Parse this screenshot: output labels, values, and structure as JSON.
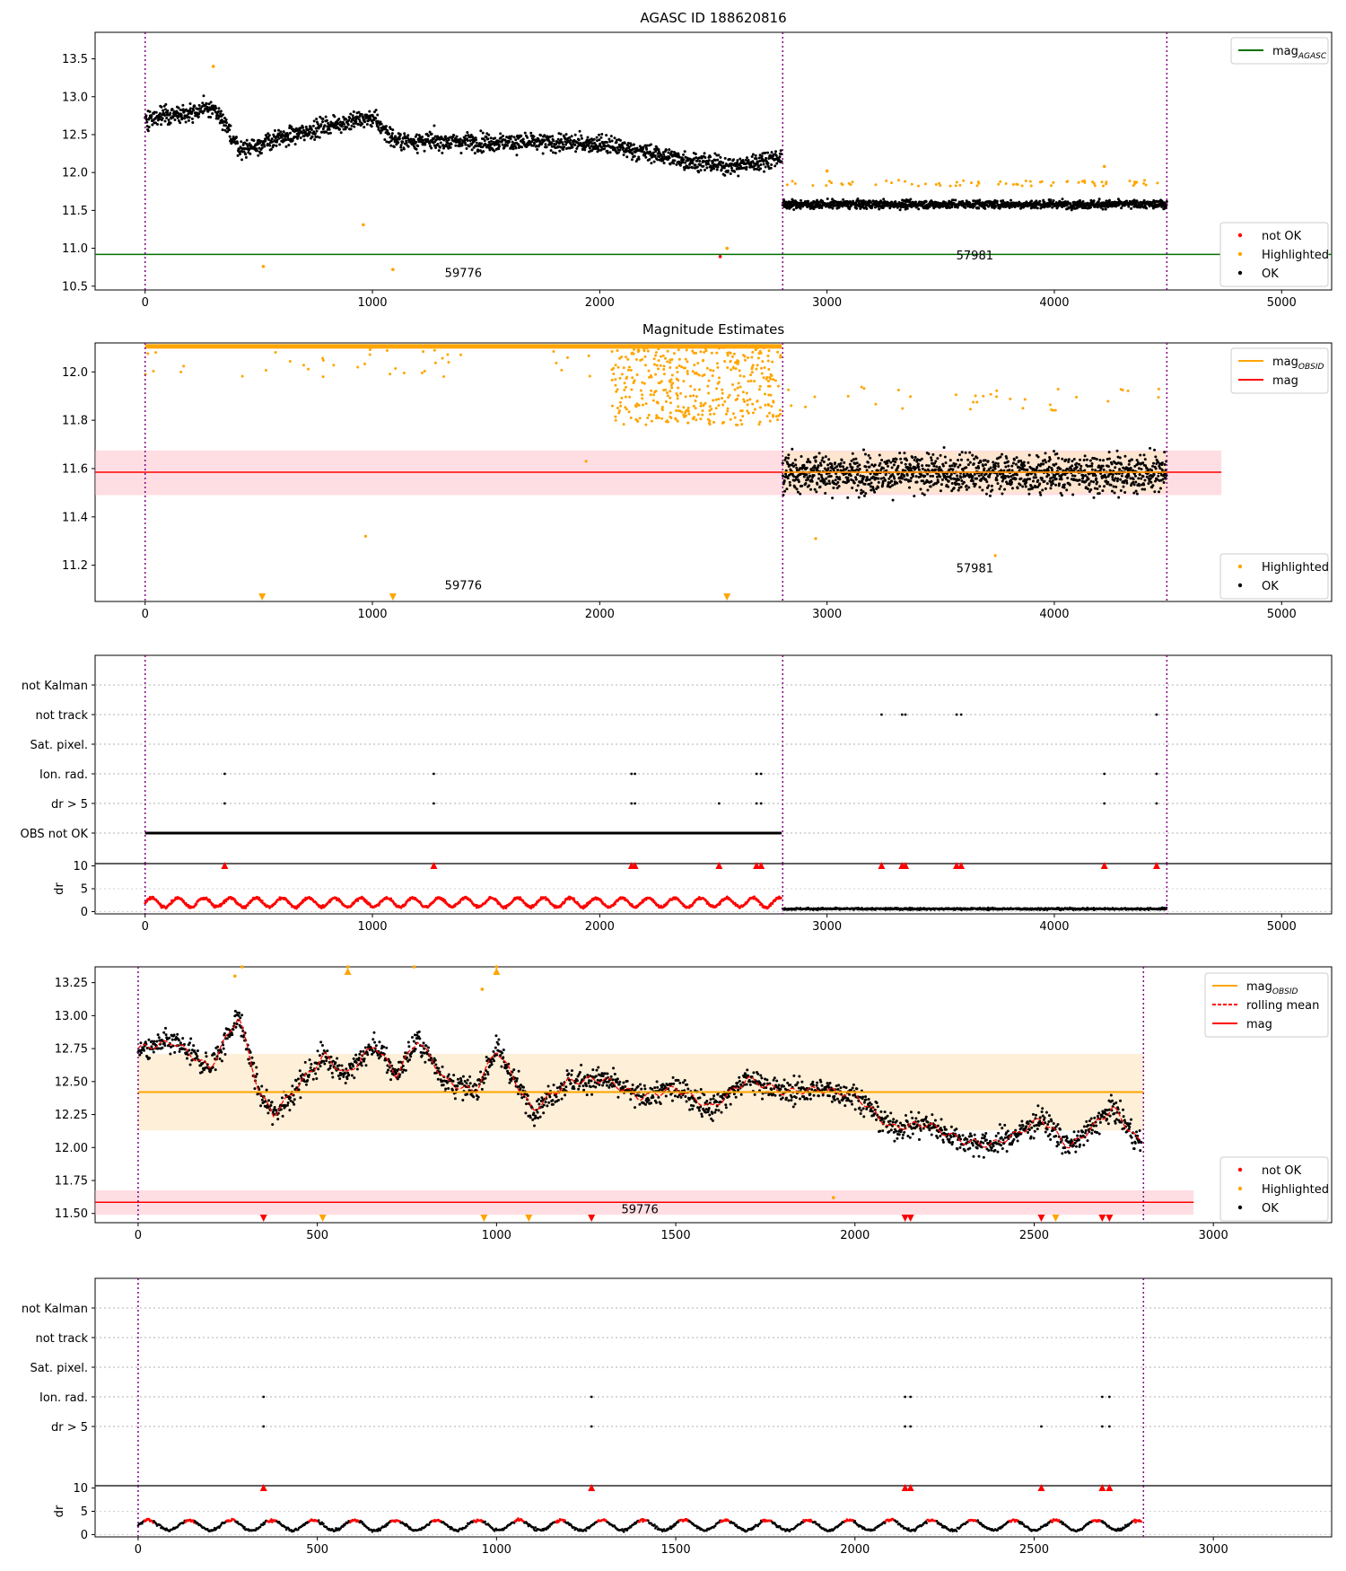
{
  "figure_title": "AGASC ID 188620816",
  "colors": {
    "ok": "#000000",
    "highlighted": "#ffa500",
    "not_ok": "#ff0000",
    "agasc": "#007000",
    "mag": "#ff0000",
    "obsid_mag": "#ffa500",
    "obs_boundary": "#800080",
    "mag_band": "#ffb6c1",
    "obsid_band": "#fde8c8"
  },
  "chart_data": [
    {
      "id": "p1",
      "type": "scatter",
      "title": "AGASC ID 188620816",
      "xlim": [
        -220,
        5220
      ],
      "ylim": [
        10.45,
        13.85
      ],
      "xticks": [
        "0",
        "1000",
        "2000",
        "3000",
        "4000",
        "5000"
      ],
      "yticks": [
        "10.5",
        "11.0",
        "11.5",
        "12.0",
        "12.5",
        "13.0",
        "13.5"
      ],
      "obs_boundaries": [
        0,
        2805,
        4495
      ],
      "obs_labels": [
        {
          "x": 1400,
          "y": 10.62,
          "text": "59776"
        },
        {
          "x": 3650,
          "y": 10.85,
          "text": "57981"
        }
      ],
      "hlines": [
        {
          "y": 10.92,
          "name": "mag_AGASC",
          "color": "#007000"
        }
      ],
      "series": [
        {
          "name": "OK",
          "obs1_trend": [
            [
              0,
              12.7
            ],
            [
              300,
              12.85
            ],
            [
              420,
              12.3
            ],
            [
              800,
              12.62
            ],
            [
              1000,
              12.72
            ],
            [
              1100,
              12.42
            ],
            [
              2000,
              12.38
            ],
            [
              2400,
              12.15
            ],
            [
              2600,
              12.08
            ],
            [
              2780,
              12.2
            ]
          ],
          "obs1_sigma": 0.15,
          "obs2_mean": 11.58,
          "obs2_sigma": 0.07
        },
        {
          "name": "Highlighted",
          "points": [
            [
              300,
              13.4
            ],
            [
              520,
              10.76
            ],
            [
              960,
              11.31
            ],
            [
              1090,
              10.72
            ],
            [
              2560,
              11.0
            ],
            [
              3000,
              12.02
            ],
            [
              4220,
              12.08
            ]
          ]
        },
        {
          "name": "not OK",
          "points": [
            [
              2530,
              10.89
            ]
          ]
        }
      ],
      "legend_top": [
        "mag_AGASC"
      ],
      "legend_bottom": [
        "not OK",
        "Highlighted",
        "OK"
      ]
    },
    {
      "id": "p2",
      "type": "scatter",
      "title": "Magnitude Estimates",
      "xlim": [
        -220,
        5220
      ],
      "ylim": [
        11.05,
        12.12
      ],
      "xticks": [
        "0",
        "1000",
        "2000",
        "3000",
        "4000",
        "5000"
      ],
      "yticks": [
        "11.2",
        "11.4",
        "11.6",
        "11.8",
        "12.0"
      ],
      "obs_boundaries": [
        0,
        2805,
        4495
      ],
      "obs_labels": [
        {
          "x": 1400,
          "y": 11.1,
          "text": "59776"
        },
        {
          "x": 3650,
          "y": 11.17,
          "text": "57981"
        }
      ],
      "mag": 11.585,
      "mag_band": [
        11.49,
        11.675
      ],
      "obsid_mag_obs2": 11.585,
      "obsid_band_obs2": [
        11.5,
        11.67
      ],
      "series": [
        {
          "name": "Highlighted",
          "description": "obs 1 saturated at top (~12.1), scattered 11.7-12.1 near x 2100-2800"
        },
        {
          "name": "OK",
          "obs2_mean": 11.58,
          "obs2_sigma": 0.09
        }
      ],
      "legend_top": [
        "mag_OBSID",
        "mag"
      ],
      "legend_bottom": [
        "Highlighted",
        "OK"
      ]
    },
    {
      "id": "p3",
      "type": "scatter",
      "title": "",
      "xlim": [
        -220,
        5220
      ],
      "categories": [
        "not Kalman",
        "not track",
        "Sat. pixel.",
        "Ion. rad.",
        "dr > 5",
        "OBS not OK"
      ],
      "flag_x": {
        "not track": [
          3240,
          3330,
          3345,
          3570,
          3590,
          4450
        ],
        "Ion. rad.": [
          350,
          1270,
          2140,
          2155,
          2690,
          2710,
          4220,
          4450
        ],
        "dr > 5": [
          350,
          1270,
          2140,
          2155,
          2525,
          2690,
          2710,
          4220,
          4450
        ],
        "OBS not OK": [
          0,
          2800
        ]
      }
    },
    {
      "id": "p3dr",
      "type": "scatter",
      "ylabel": "dr",
      "xlim": [
        -220,
        5220
      ],
      "ylim": [
        -0.5,
        10.5
      ],
      "xticks": [
        "0",
        "1000",
        "2000",
        "3000",
        "4000",
        "5000"
      ],
      "yticks": [
        "0",
        "5",
        "10"
      ],
      "series": [
        {
          "name": "obs1 dr (red)",
          "mean": 2.0,
          "amplitude": 1.0,
          "period": 115
        },
        {
          "name": "obs2 dr (black)",
          "mean": 0.6,
          "sigma": 0.25
        }
      ]
    },
    {
      "id": "p4",
      "type": "scatter",
      "title": "",
      "xlim": [
        -120,
        3330
      ],
      "ylim": [
        11.43,
        13.37
      ],
      "xticks": [
        "0",
        "500",
        "1000",
        "1500",
        "2000",
        "2500",
        "3000"
      ],
      "yticks": [
        "11.50",
        "11.75",
        "12.00",
        "12.25",
        "12.50",
        "12.75",
        "13.00",
        "13.25"
      ],
      "obs_boundaries": [
        0,
        2805
      ],
      "obs_labels": [
        {
          "x": 1400,
          "y": 11.5,
          "text": "59776"
        }
      ],
      "obsid_mag": 12.42,
      "obsid_band": [
        12.13,
        12.71
      ],
      "mag": 11.585,
      "mag_band": [
        11.49,
        11.675
      ],
      "rolling_mean": [
        [
          0,
          12.75
        ],
        [
          100,
          12.8
        ],
        [
          200,
          12.6
        ],
        [
          280,
          13.0
        ],
        [
          340,
          12.4
        ],
        [
          380,
          12.25
        ],
        [
          440,
          12.45
        ],
        [
          520,
          12.7
        ],
        [
          580,
          12.55
        ],
        [
          660,
          12.78
        ],
        [
          720,
          12.55
        ],
        [
          780,
          12.82
        ],
        [
          860,
          12.5
        ],
        [
          940,
          12.42
        ],
        [
          1000,
          12.75
        ],
        [
          1100,
          12.28
        ],
        [
          1200,
          12.5
        ],
        [
          1300,
          12.52
        ],
        [
          1400,
          12.38
        ],
        [
          1500,
          12.45
        ],
        [
          1600,
          12.3
        ],
        [
          1700,
          12.52
        ],
        [
          1800,
          12.42
        ],
        [
          1900,
          12.44
        ],
        [
          2000,
          12.4
        ],
        [
          2100,
          12.15
        ],
        [
          2200,
          12.18
        ],
        [
          2300,
          12.05
        ],
        [
          2380,
          12.02
        ],
        [
          2450,
          12.1
        ],
        [
          2520,
          12.22
        ],
        [
          2600,
          12.0
        ],
        [
          2720,
          12.3
        ],
        [
          2790,
          12.05
        ]
      ],
      "series": [
        {
          "name": "OK",
          "sigma": 0.12
        },
        {
          "name": "Highlighted",
          "points": [
            [
              270,
              13.3
            ],
            [
              290,
              13.37
            ],
            [
              585,
              13.37
            ],
            [
              770,
              13.37
            ],
            [
              960,
              13.2
            ],
            [
              1000,
              13.37
            ],
            [
              1940,
              11.62
            ]
          ]
        },
        {
          "name": "not OK",
          "markers_x": [
            350,
            1265,
            2140,
            2155,
            2520,
            2690,
            2710
          ]
        },
        {
          "name": "Highlighted markers",
          "markers_x": [
            515,
            965,
            1090,
            2560
          ]
        }
      ],
      "legend_top": [
        "mag_OBSID",
        "rolling mean",
        "mag"
      ],
      "legend_bottom": [
        "not OK",
        "Highlighted",
        "OK"
      ]
    },
    {
      "id": "p5",
      "type": "scatter",
      "title": "",
      "xlim": [
        -120,
        3330
      ],
      "categories": [
        "not Kalman",
        "not track",
        "Sat. pixel.",
        "Ion. rad.",
        "dr > 5"
      ],
      "flag_x": {
        "Ion. rad.": [
          350,
          1265,
          2140,
          2155,
          2690,
          2710
        ],
        "dr > 5": [
          350,
          1265,
          2140,
          2155,
          2520,
          2690,
          2710
        ]
      }
    },
    {
      "id": "p5dr",
      "type": "scatter",
      "ylabel": "dr",
      "xlim": [
        -120,
        3330
      ],
      "ylim": [
        -0.5,
        10.5
      ],
      "xticks": [
        "0",
        "500",
        "1000",
        "1500",
        "2000",
        "2500",
        "3000"
      ],
      "yticks": [
        "0",
        "5",
        "10"
      ],
      "series": [
        {
          "name": "obs1 dr",
          "mean": 2.0,
          "amplitude": 1.1,
          "period": 115
        }
      ]
    }
  ],
  "legend_labels": {
    "mag_AGASC": "mag",
    "mag_AGASC_sub": "AGASC",
    "mag_OBSID": "mag",
    "mag_OBSID_sub": "OBSID",
    "mag": "mag",
    "rolling mean": "rolling mean",
    "not OK": "not OK",
    "Highlighted": "Highlighted",
    "OK": "OK"
  }
}
